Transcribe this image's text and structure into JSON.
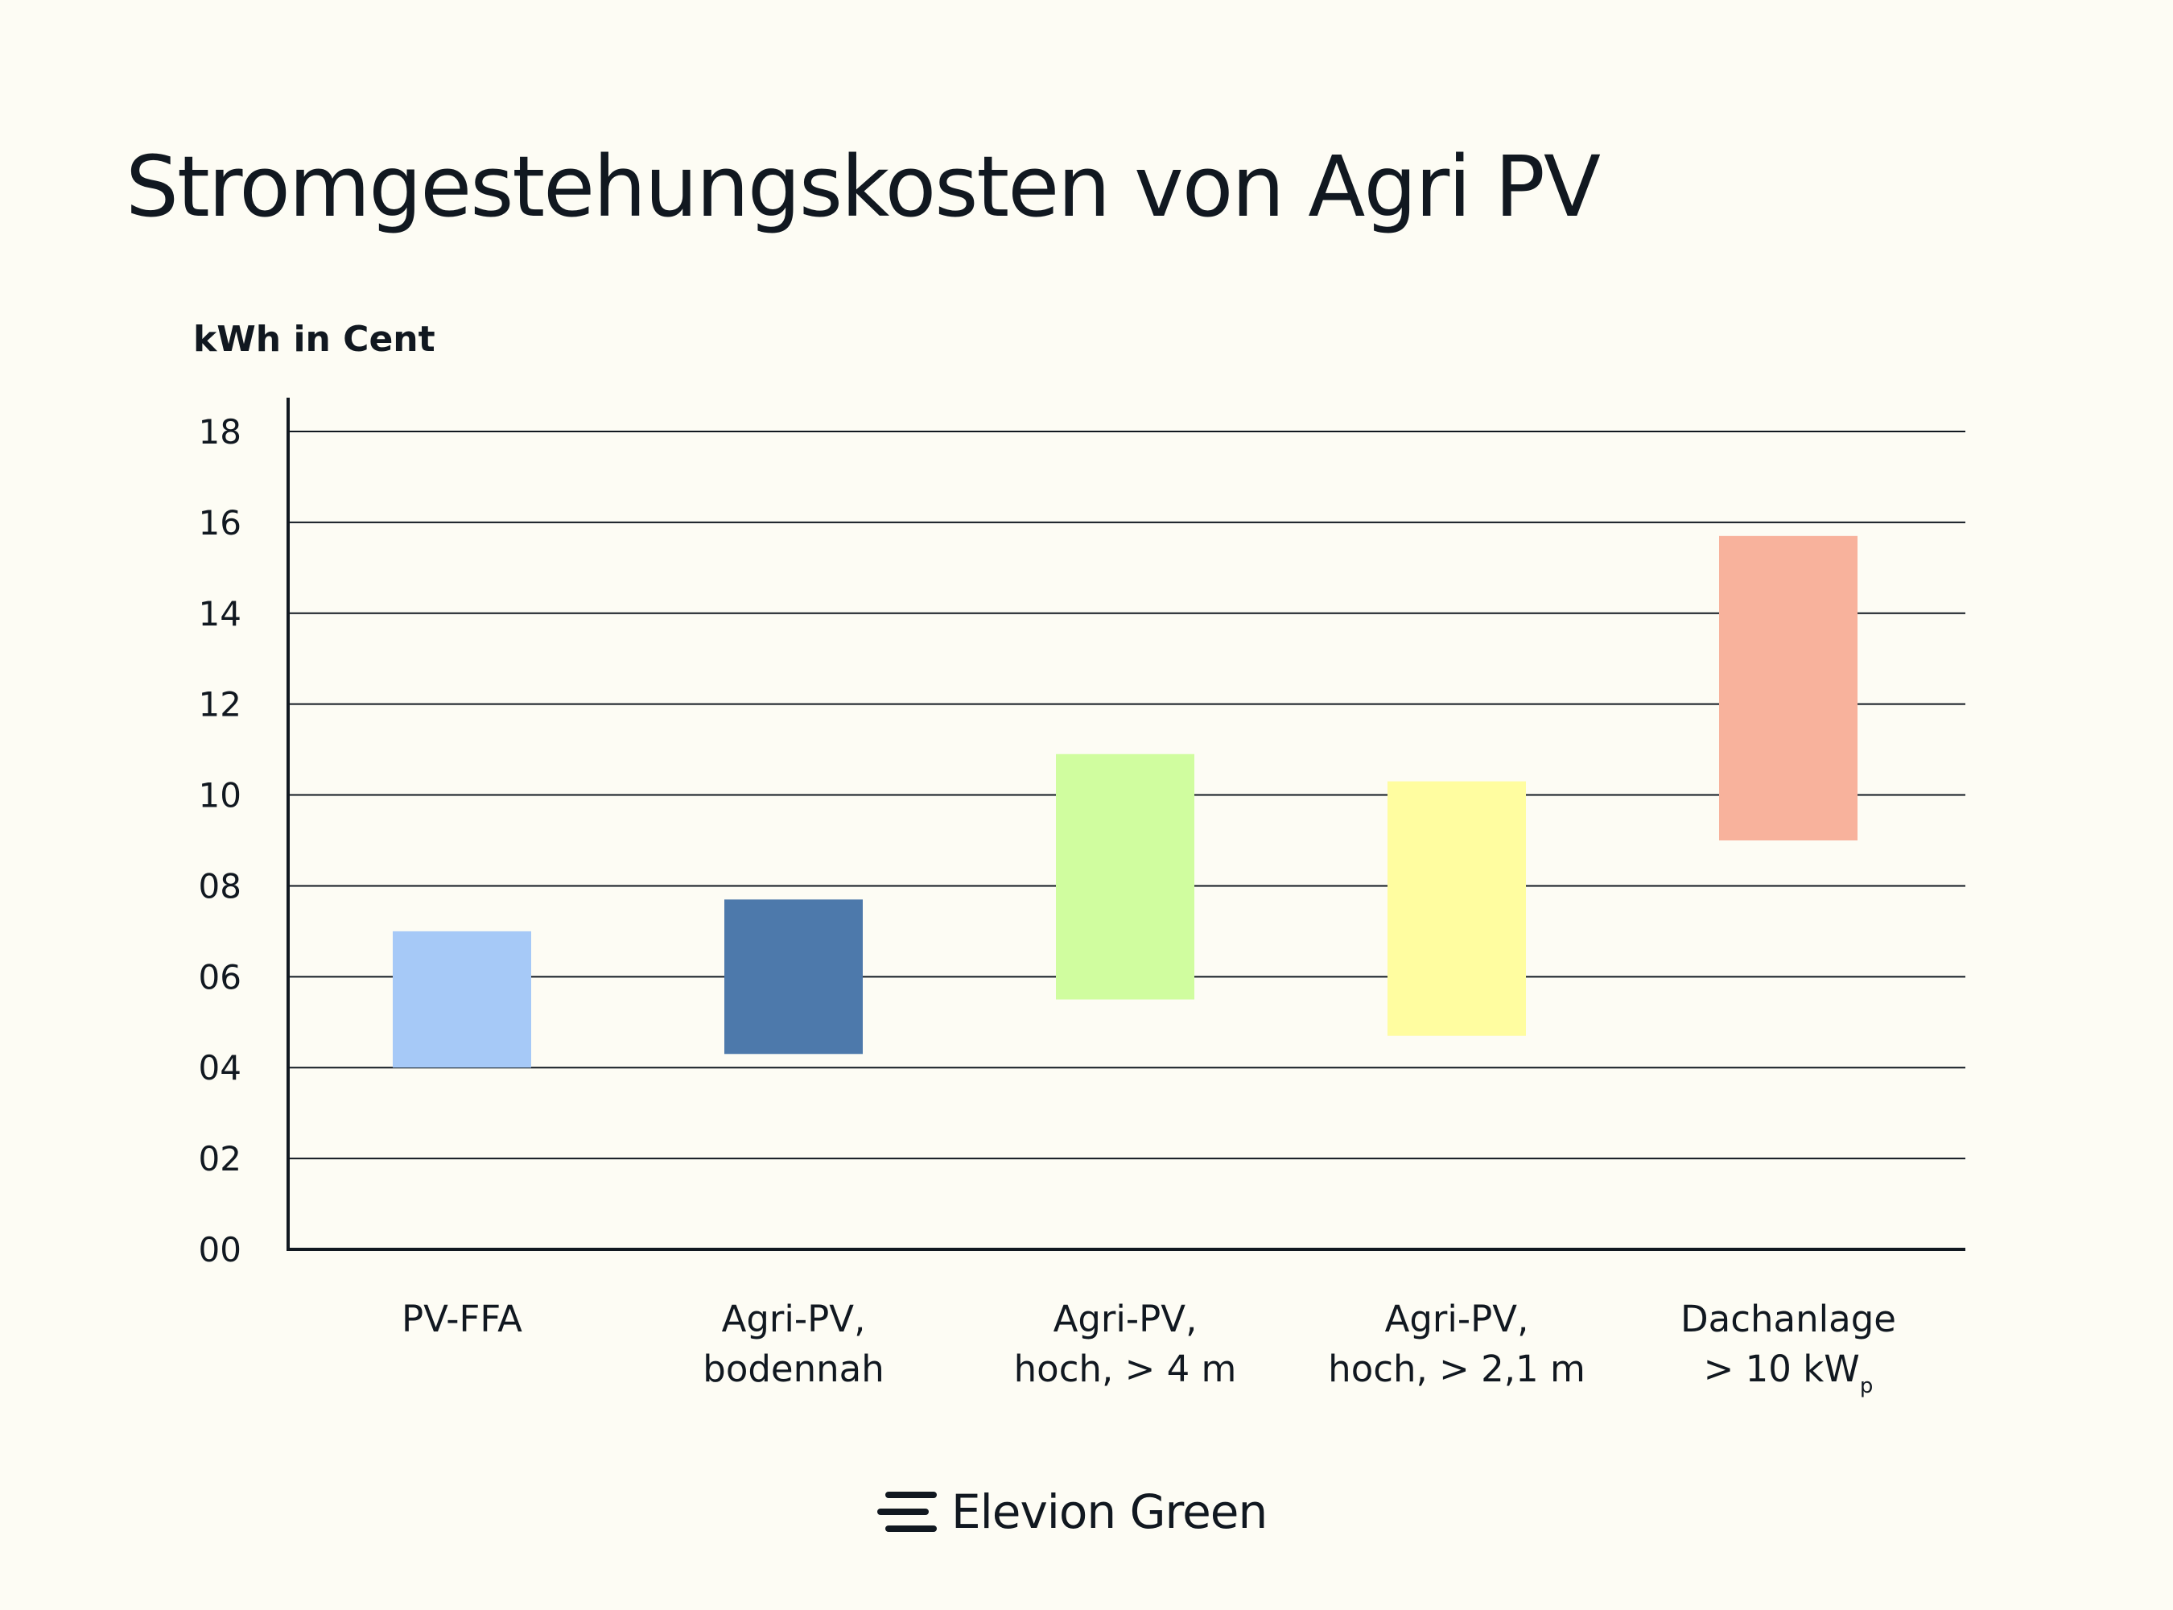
{
  "chart_data": {
    "type": "bar",
    "subtype": "floating-range",
    "title": "Stromgestehungskosten von Agri PV",
    "ylabel": "kWh in Cent",
    "xlabel": "",
    "ylim": [
      0,
      18
    ],
    "y_ticks": [
      "00",
      "02",
      "04",
      "06",
      "08",
      "10",
      "12",
      "14",
      "16",
      "18"
    ],
    "grid": true,
    "categories": [
      [
        "PV-FFA"
      ],
      [
        "Agri-PV,",
        "bodennah"
      ],
      [
        "Agri-PV,",
        "hoch, > 4 m"
      ],
      [
        "Agri-PV,",
        "hoch, > 2,1 m"
      ],
      [
        "Dachanlage",
        "> 10 kW"
      ]
    ],
    "category_subscripts": [
      "",
      "",
      "",
      "",
      "p"
    ],
    "series": [
      {
        "low": [
          4.0,
          4.3,
          5.5,
          4.7,
          9.0
        ],
        "high": [
          7.0,
          7.7,
          10.9,
          10.3,
          15.7
        ]
      }
    ],
    "colors": [
      "#a6c9f7",
      "#4d79ab",
      "#d0fd9f",
      "#fffda0",
      "#f8b29c"
    ]
  },
  "branding": {
    "name": "Elevion Green",
    "logo": "elevion-logo-icon"
  }
}
